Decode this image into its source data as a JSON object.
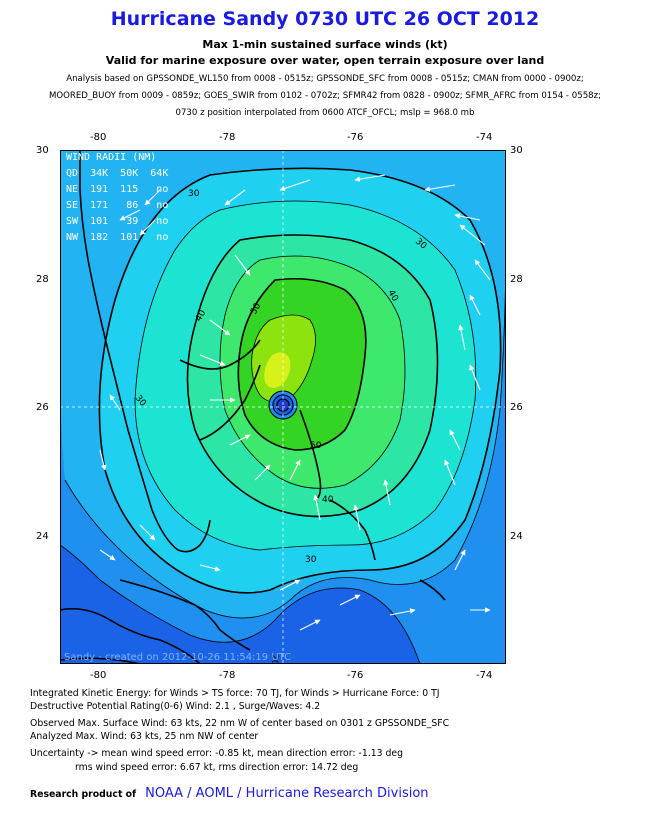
{
  "header": {
    "title": "Hurricane Sandy 0730 UTC 26 OCT 2012",
    "subtitle1": "Max 1-min sustained surface winds (kt)",
    "subtitle2": "Valid for marine exposure over water, open terrain exposure over land",
    "analysis_line1": "Analysis based on GPSSONDE_WL150 from 0008 - 0515z; GPSSONDE_SFC from 0008 - 0515z; CMAN from 0000 - 0900z;",
    "analysis_line2": "MOORED_BUOY from 0009 - 0859z; GOES_SWIR from 0102 - 0702z; SFMR42 from 0828 - 0900z; SFMR_AFRC from 0154 - 0558z;",
    "analysis_line3": "0730 z position interpolated from 0600 ATCF_OFCL; mslp = 968.0 mb"
  },
  "axes": {
    "lon_ticks": [
      "-80",
      "-78",
      "-76",
      "-74"
    ],
    "lat_ticks": [
      "30",
      "28",
      "26",
      "24"
    ]
  },
  "wind_radii": {
    "title": "WIND RADII (NM)",
    "rows": [
      "QD  34K  50K  64K",
      "NE  191  115   no",
      "SE  171   86   no",
      "SW  101   39   no",
      "NW  182  101   no"
    ]
  },
  "contour_labels": [
    "30",
    "30",
    "30",
    "30",
    "40",
    "40",
    "40",
    "50",
    "50",
    "20"
  ],
  "credit": "Sandy - created on 2012-10-26 11:54:19 UTC",
  "stats": {
    "ike": "Integrated Kinetic Energy: for Winds > TS force: 70 TJ, for Winds > Hurricane Force: 0 TJ",
    "dpr": "Destructive Potential Rating(0-6)   Wind: 2.1 , Surge/Waves: 4.2",
    "observed": "Observed Max. Surface Wind: 63 kts, 22 nm W of center based on 0301 z GPSSONDE_SFC",
    "analyzed": "Analyzed Max. Wind: 63 kts, 25 nm  NW of center",
    "uncert1": "Uncertainty -> mean wind speed error:  -0.85 kt, mean direction error:  -1.13 deg",
    "uncert2": "rms wind speed error: 6.67 kt, rms direction error: 14.72 deg"
  },
  "footer": {
    "label": "Research product of",
    "org": "NOAA  /  AOML  /  Hurricane Research Division"
  },
  "colors": {
    "title": "#1a1ae0",
    "band_lt20": "#1a63e6",
    "band_20_25": "#1f8ff0",
    "band_25_30": "#22b3f2",
    "band_30_35": "#1fd0f0",
    "band_35_40": "#1de3d3",
    "band_40_45": "#2de6a6",
    "band_45_50": "#3ee86c",
    "band_50_55": "#33d424",
    "band_55_60": "#8ce30e",
    "band_60_65": "#d6f21a"
  }
}
